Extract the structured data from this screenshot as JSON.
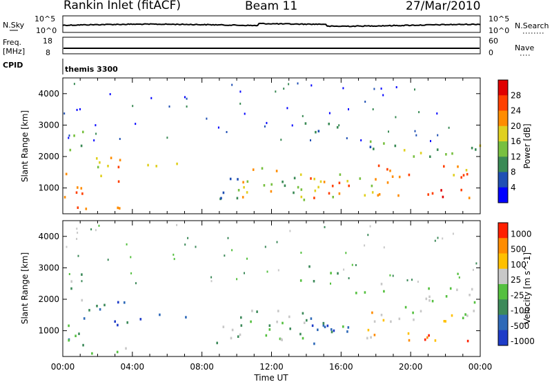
{
  "header": {
    "title": "Rankin Inlet (fitACF)",
    "beam": "Beam 11",
    "date": "27/Mar/2010"
  },
  "nsky_panel": {
    "left_label": "N.Sky",
    "left_ticks": [
      "10^5",
      "10^0"
    ],
    "right_label": "N.Search",
    "right_ticks": [
      "10^5",
      "10^0"
    ]
  },
  "freq_panel": {
    "left_label_1": "Freq.",
    "left_label_2": "[MHz]",
    "left_ticks": [
      "18",
      "8"
    ],
    "right_label": "Nave",
    "right_ticks": [
      "60",
      "0"
    ]
  },
  "cpid_panel": {
    "left_label": "CPID",
    "program": "themis 3300"
  },
  "time_axis": {
    "labels": [
      "00:00",
      "04:00",
      "08:00",
      "12:00",
      "16:00",
      "20:00",
      "00:00"
    ],
    "title": "Time UT"
  },
  "chart_data": [
    {
      "type": "heatmap",
      "name": "power",
      "ylabel": "Slant Range [km]",
      "yticks": [
        "1000",
        "2000",
        "3000",
        "4000"
      ],
      "ylim": [
        180,
        4500
      ],
      "xlim_hours": [
        0,
        24
      ],
      "colorbar": {
        "label": "Power [dB]",
        "ticks": [
          "4",
          "8",
          "12",
          "16",
          "20",
          "24",
          "28"
        ],
        "colors": [
          "#0000ff",
          "#1f4fb4",
          "#3a8a55",
          "#78c040",
          "#e0d020",
          "#ff8c00",
          "#ff4000",
          "#e00000"
        ],
        "range": [
          0,
          32
        ]
      }
    },
    {
      "type": "heatmap",
      "name": "velocity",
      "ylabel": "Slant Range [km]",
      "yticks": [
        "1000",
        "2000",
        "3000",
        "4000"
      ],
      "ylim": [
        180,
        4500
      ],
      "xlim_hours": [
        0,
        24
      ],
      "colorbar": {
        "label": "Velocity [m s^-1]",
        "ticks": [
          "1000",
          "500",
          "100",
          "25",
          "-25",
          "-100",
          "-500",
          "-1000"
        ],
        "colors": [
          "#1e3cc8",
          "#2f6ab8",
          "#3d8a5a",
          "#55c040",
          "#c8c8c8",
          "#ffc000",
          "#ff8c00",
          "#ff2000"
        ]
      }
    }
  ]
}
